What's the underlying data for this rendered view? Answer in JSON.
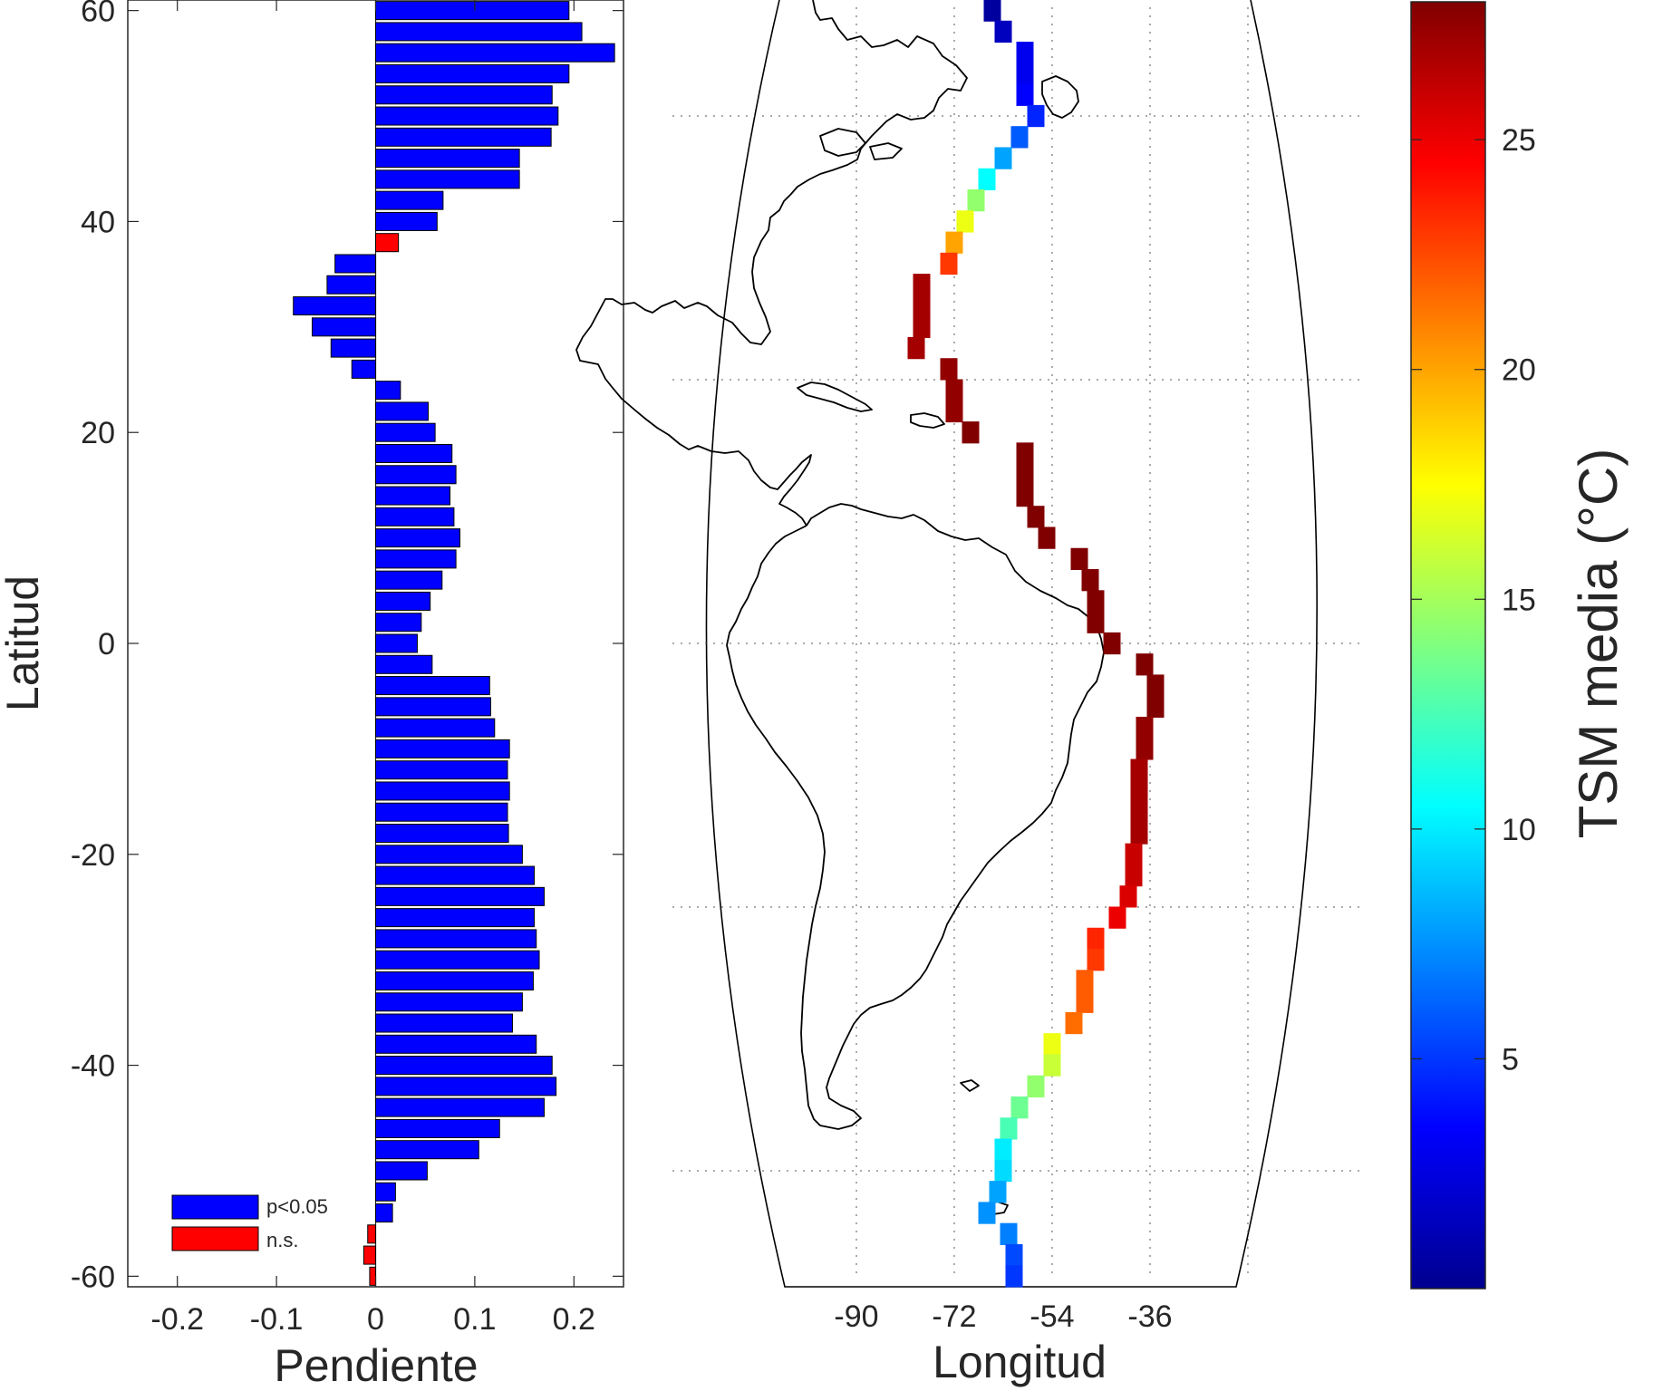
{
  "chart_data": [
    {
      "type": "bar",
      "orientation": "horizontal",
      "xlabel": "Pendiente",
      "ylabel": "Latitud",
      "xlim": [
        -0.25,
        0.25
      ],
      "ylim": [
        -61,
        61
      ],
      "xticks": [
        "-0.2",
        "-0.1",
        "0",
        "0.1",
        "0.2"
      ],
      "xtick_values": [
        -0.2,
        -0.1,
        0,
        0.1,
        0.2
      ],
      "yticks": [
        "-60",
        "-40",
        "-20",
        "0",
        "20",
        "40",
        "60"
      ],
      "ytick_values": [
        -60,
        -40,
        -20,
        0,
        20,
        40,
        60
      ],
      "bar_step": 2,
      "bar_latitude_start": -60,
      "legend": [
        {
          "label": "p<0.05",
          "color": "#0000ff"
        },
        {
          "label": "n.s.",
          "color": "#ff0000"
        }
      ],
      "values": [
        -0.006,
        -0.012,
        -0.008,
        0.017,
        0.02,
        0.052,
        0.104,
        0.125,
        0.17,
        0.182,
        0.178,
        0.162,
        0.138,
        0.148,
        0.159,
        0.165,
        0.162,
        0.16,
        0.17,
        0.16,
        0.148,
        0.134,
        0.133,
        0.135,
        0.133,
        0.135,
        0.12,
        0.116,
        0.115,
        0.057,
        0.042,
        0.046,
        0.055,
        0.067,
        0.081,
        0.085,
        0.079,
        0.075,
        0.081,
        0.077,
        0.06,
        0.053,
        0.025,
        -0.024,
        -0.045,
        -0.064,
        -0.083,
        -0.049,
        -0.041,
        0.023,
        0.062,
        0.068,
        0.145,
        0.145,
        0.177,
        0.184,
        0.178,
        0.195,
        0.241,
        0.208,
        0.195
      ],
      "significant": [
        false,
        false,
        false,
        true,
        true,
        true,
        true,
        true,
        true,
        true,
        true,
        true,
        true,
        true,
        true,
        true,
        true,
        true,
        true,
        true,
        true,
        true,
        true,
        true,
        true,
        true,
        true,
        true,
        true,
        true,
        true,
        true,
        true,
        true,
        true,
        true,
        true,
        true,
        true,
        true,
        true,
        true,
        true,
        true,
        true,
        true,
        true,
        true,
        true,
        false,
        true,
        true,
        true,
        true,
        true,
        true,
        true,
        true,
        true,
        true,
        true
      ]
    },
    {
      "type": "heatmap",
      "subtype": "map",
      "xlabel": "Longitud",
      "xticks": [
        "-90",
        "-72",
        "-54",
        "-36"
      ],
      "xtick_values": [
        -90,
        -72,
        -54,
        -36
      ],
      "lon_range": [
        -110,
        -10
      ],
      "lat_range": [
        -61,
        61
      ],
      "colorbar_label": "TSM media (°C)",
      "colorbar_ticks": [
        "5",
        "10",
        "15",
        "20",
        "25"
      ],
      "colorbar_tick_values": [
        5,
        10,
        15,
        20,
        25
      ],
      "colorbar_range": [
        0,
        28
      ],
      "colormap": "jet",
      "cells": [
        {
          "lon": -65,
          "lat": 60,
          "temp": 0.5
        },
        {
          "lon": -63,
          "lat": 58,
          "temp": 1.5
        },
        {
          "lon": -59,
          "lat": 56,
          "temp": 3
        },
        {
          "lon": -59,
          "lat": 54,
          "temp": 3
        },
        {
          "lon": -59,
          "lat": 52,
          "temp": 3.5
        },
        {
          "lon": -57,
          "lat": 50,
          "temp": 4.5
        },
        {
          "lon": -60,
          "lat": 48,
          "temp": 6
        },
        {
          "lon": -63,
          "lat": 46,
          "temp": 8
        },
        {
          "lon": -66,
          "lat": 44,
          "temp": 10.5
        },
        {
          "lon": -68,
          "lat": 42,
          "temp": 14.5
        },
        {
          "lon": -70,
          "lat": 40,
          "temp": 17
        },
        {
          "lon": -72,
          "lat": 38,
          "temp": 20
        },
        {
          "lon": -73,
          "lat": 36,
          "temp": 23
        },
        {
          "lon": -78,
          "lat": 34,
          "temp": 27
        },
        {
          "lon": -78,
          "lat": 32,
          "temp": 27
        },
        {
          "lon": -78,
          "lat": 30,
          "temp": 27
        },
        {
          "lon": -79,
          "lat": 28,
          "temp": 27
        },
        {
          "lon": -73,
          "lat": 26,
          "temp": 27.5
        },
        {
          "lon": -72,
          "lat": 24,
          "temp": 27.5
        },
        {
          "lon": -72,
          "lat": 22,
          "temp": 27.5
        },
        {
          "lon": -69,
          "lat": 20,
          "temp": 28
        },
        {
          "lon": -59,
          "lat": 18,
          "temp": 28
        },
        {
          "lon": -59,
          "lat": 16,
          "temp": 28
        },
        {
          "lon": -59,
          "lat": 14,
          "temp": 28
        },
        {
          "lon": -57,
          "lat": 12,
          "temp": 28
        },
        {
          "lon": -55,
          "lat": 10,
          "temp": 28
        },
        {
          "lon": -49,
          "lat": 8,
          "temp": 28
        },
        {
          "lon": -47,
          "lat": 6,
          "temp": 28
        },
        {
          "lon": -46,
          "lat": 4,
          "temp": 28
        },
        {
          "lon": -46,
          "lat": 2,
          "temp": 28
        },
        {
          "lon": -43,
          "lat": 0,
          "temp": 28
        },
        {
          "lon": -37,
          "lat": -2,
          "temp": 28
        },
        {
          "lon": -35,
          "lat": -4,
          "temp": 28
        },
        {
          "lon": -35,
          "lat": -6,
          "temp": 28
        },
        {
          "lon": -37,
          "lat": -8,
          "temp": 27.5
        },
        {
          "lon": -37,
          "lat": -10,
          "temp": 27.5
        },
        {
          "lon": -38,
          "lat": -12,
          "temp": 27
        },
        {
          "lon": -38,
          "lat": -14,
          "temp": 27
        },
        {
          "lon": -38,
          "lat": -16,
          "temp": 27
        },
        {
          "lon": -38,
          "lat": -18,
          "temp": 27
        },
        {
          "lon": -39,
          "lat": -20,
          "temp": 26
        },
        {
          "lon": -39,
          "lat": -22,
          "temp": 26
        },
        {
          "lon": -40,
          "lat": -24,
          "temp": 25.5
        },
        {
          "lon": -42,
          "lat": -26,
          "temp": 25
        },
        {
          "lon": -46,
          "lat": -28,
          "temp": 23.5
        },
        {
          "lon": -46,
          "lat": -30,
          "temp": 23
        },
        {
          "lon": -48,
          "lat": -32,
          "temp": 22
        },
        {
          "lon": -48,
          "lat": -34,
          "temp": 22
        },
        {
          "lon": -50,
          "lat": -36,
          "temp": 21.5
        },
        {
          "lon": -54,
          "lat": -38,
          "temp": 17
        },
        {
          "lon": -54,
          "lat": -40,
          "temp": 16
        },
        {
          "lon": -57,
          "lat": -42,
          "temp": 14.5
        },
        {
          "lon": -60,
          "lat": -44,
          "temp": 13.5
        },
        {
          "lon": -62,
          "lat": -46,
          "temp": 12.5
        },
        {
          "lon": -63,
          "lat": -48,
          "temp": 10
        },
        {
          "lon": -63,
          "lat": -50,
          "temp": 9.5
        },
        {
          "lon": -64,
          "lat": -52,
          "temp": 8
        },
        {
          "lon": -66,
          "lat": -54,
          "temp": 7.5
        },
        {
          "lon": -62,
          "lat": -56,
          "temp": 7
        },
        {
          "lon": -61,
          "lat": -58,
          "temp": 5.5
        },
        {
          "lon": -61,
          "lat": -60,
          "temp": 5
        }
      ]
    }
  ]
}
